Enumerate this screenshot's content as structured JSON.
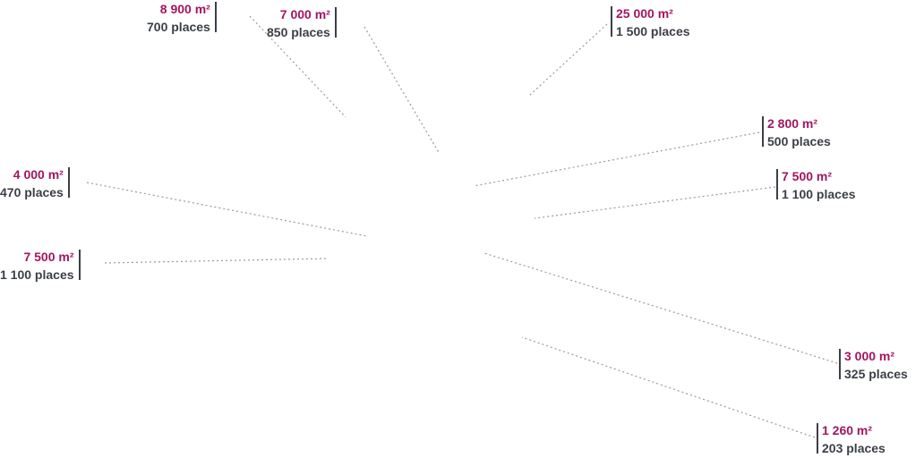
{
  "callouts": [
    {
      "area": "8 900 m²",
      "places": "700 places"
    },
    {
      "area": "7 000 m²",
      "places": "850 places"
    },
    {
      "area": "25 000 m²",
      "places": "1 500 places"
    },
    {
      "area": "2 800 m²",
      "places": "500 places"
    },
    {
      "area": "7 500 m²",
      "places": "1 100 places"
    },
    {
      "area": "4 000 m²",
      "places": "470 places"
    },
    {
      "area": "7 500 m²",
      "places": "1 100 places"
    },
    {
      "area": "3 000 m²",
      "places": "325 places"
    },
    {
      "area": "1 260 m²",
      "places": "203 places"
    }
  ],
  "colors": {
    "area_text": "#a3155f",
    "places_text": "#3b3f47",
    "leader_line": "#9a9a9a"
  }
}
